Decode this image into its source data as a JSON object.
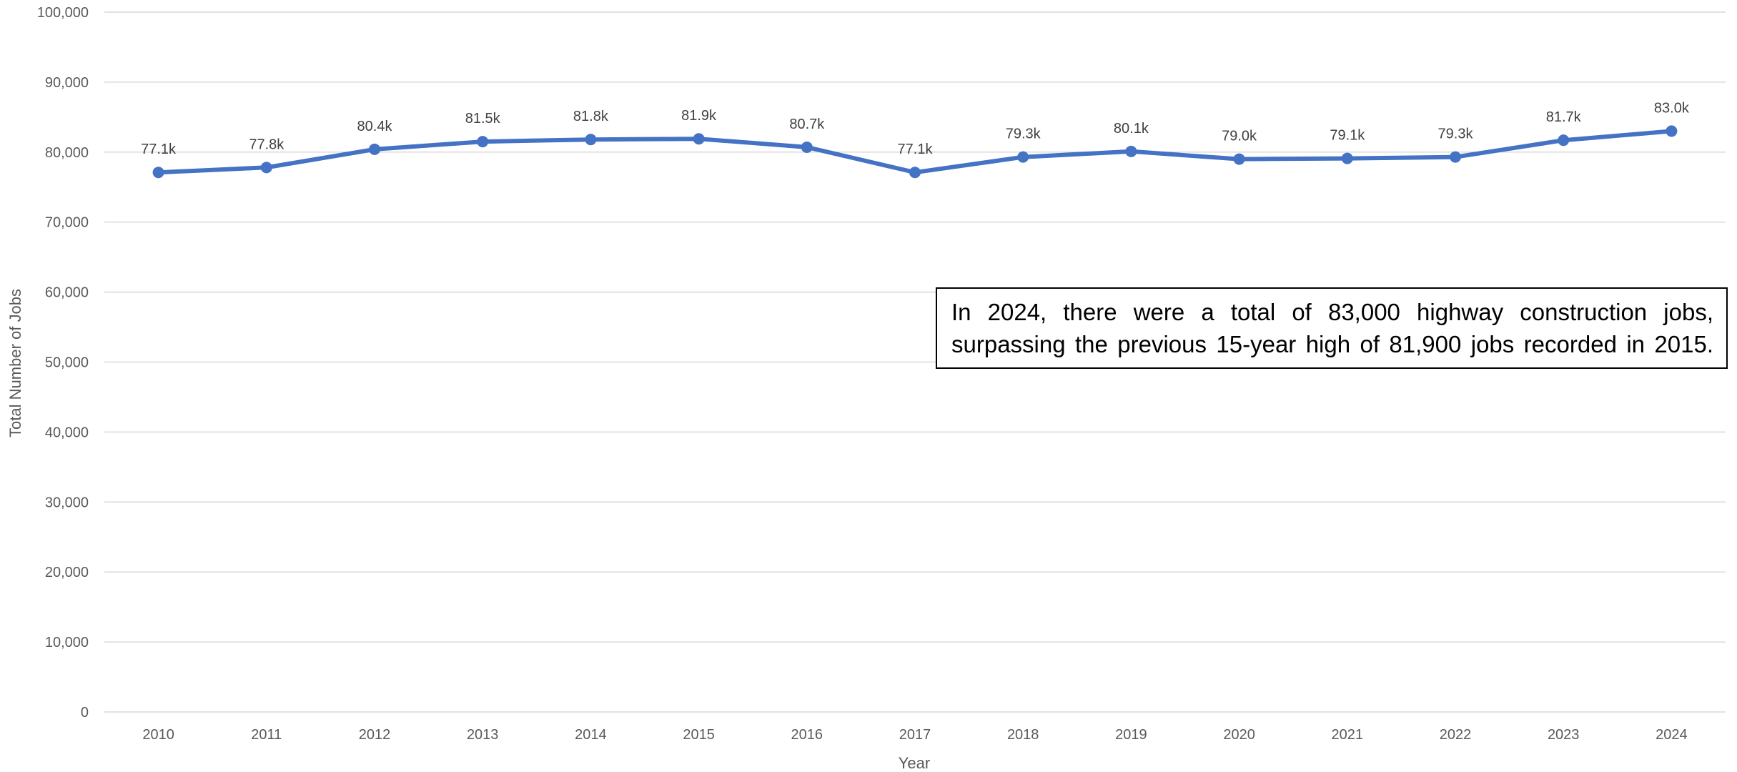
{
  "chart_data": {
    "type": "line",
    "title": "",
    "xlabel": "Year",
    "ylabel": "Total Number of Jobs",
    "ylim": [
      0,
      100000
    ],
    "y_ticks": [
      "0",
      "10,000",
      "20,000",
      "30,000",
      "40,000",
      "50,000",
      "60,000",
      "70,000",
      "80,000",
      "90,000",
      "100,000"
    ],
    "y_tick_values": [
      0,
      10000,
      20000,
      30000,
      40000,
      50000,
      60000,
      70000,
      80000,
      90000,
      100000
    ],
    "categories": [
      "2010",
      "2011",
      "2012",
      "2013",
      "2014",
      "2015",
      "2016",
      "2017",
      "2018",
      "2019",
      "2020",
      "2021",
      "2022",
      "2023",
      "2024"
    ],
    "series": [
      {
        "values": [
          77100,
          77800,
          80400,
          81500,
          81800,
          81900,
          80700,
          77100,
          79300,
          80100,
          79000,
          79100,
          79300,
          81700,
          83000
        ],
        "labels": [
          "77.1k",
          "77.8k",
          "80.4k",
          "81.5k",
          "81.8k",
          "81.9k",
          "80.7k",
          "77.1k",
          "79.3k",
          "80.1k",
          "79.0k",
          "79.1k",
          "79.3k",
          "81.7k",
          "83.0k"
        ]
      }
    ],
    "grid": true,
    "legend": "none",
    "colors": {
      "series": "#4472c4",
      "grid": "#d9d9d9",
      "tick_text": "#595959"
    },
    "annotation": "In 2024, there were a total of 83,000 highway construction jobs, surpassing the previous 15-year high of 81,900 jobs recorded in 2015."
  }
}
